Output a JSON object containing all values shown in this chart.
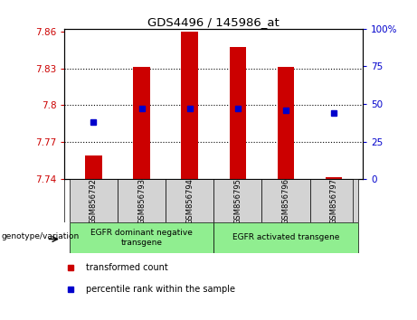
{
  "title": "GDS4496 / 145986_at",
  "samples": [
    "GSM856792",
    "GSM856793",
    "GSM856794",
    "GSM856795",
    "GSM856796",
    "GSM856797"
  ],
  "red_values": [
    7.759,
    7.831,
    7.86,
    7.847,
    7.831,
    7.742
  ],
  "blue_percentiles": [
    38,
    47,
    47,
    47,
    46,
    44
  ],
  "ylim": [
    7.74,
    7.862
  ],
  "y_ticks": [
    7.74,
    7.77,
    7.8,
    7.83,
    7.86
  ],
  "ytick_labels": [
    "7.74",
    "7.77",
    "7.8",
    "7.83",
    "7.86"
  ],
  "right_yticks": [
    0,
    25,
    50,
    75,
    100
  ],
  "right_ytick_labels": [
    "0",
    "25",
    "50",
    "75",
    "100%"
  ],
  "gridlines": [
    7.77,
    7.8,
    7.83
  ],
  "bar_bottom": 7.74,
  "bar_color": "#cc0000",
  "dot_color": "#0000cc",
  "group1_label": "EGFR dominant negative\ntransgene",
  "group2_label": "EGFR activated transgene",
  "legend_red": "transformed count",
  "legend_blue": "percentile rank within the sample",
  "genotype_label": "genotype/variation",
  "group_bg": "#90ee90",
  "sample_bg": "#d3d3d3",
  "plot_bg": "#ffffff",
  "bar_width": 0.35
}
